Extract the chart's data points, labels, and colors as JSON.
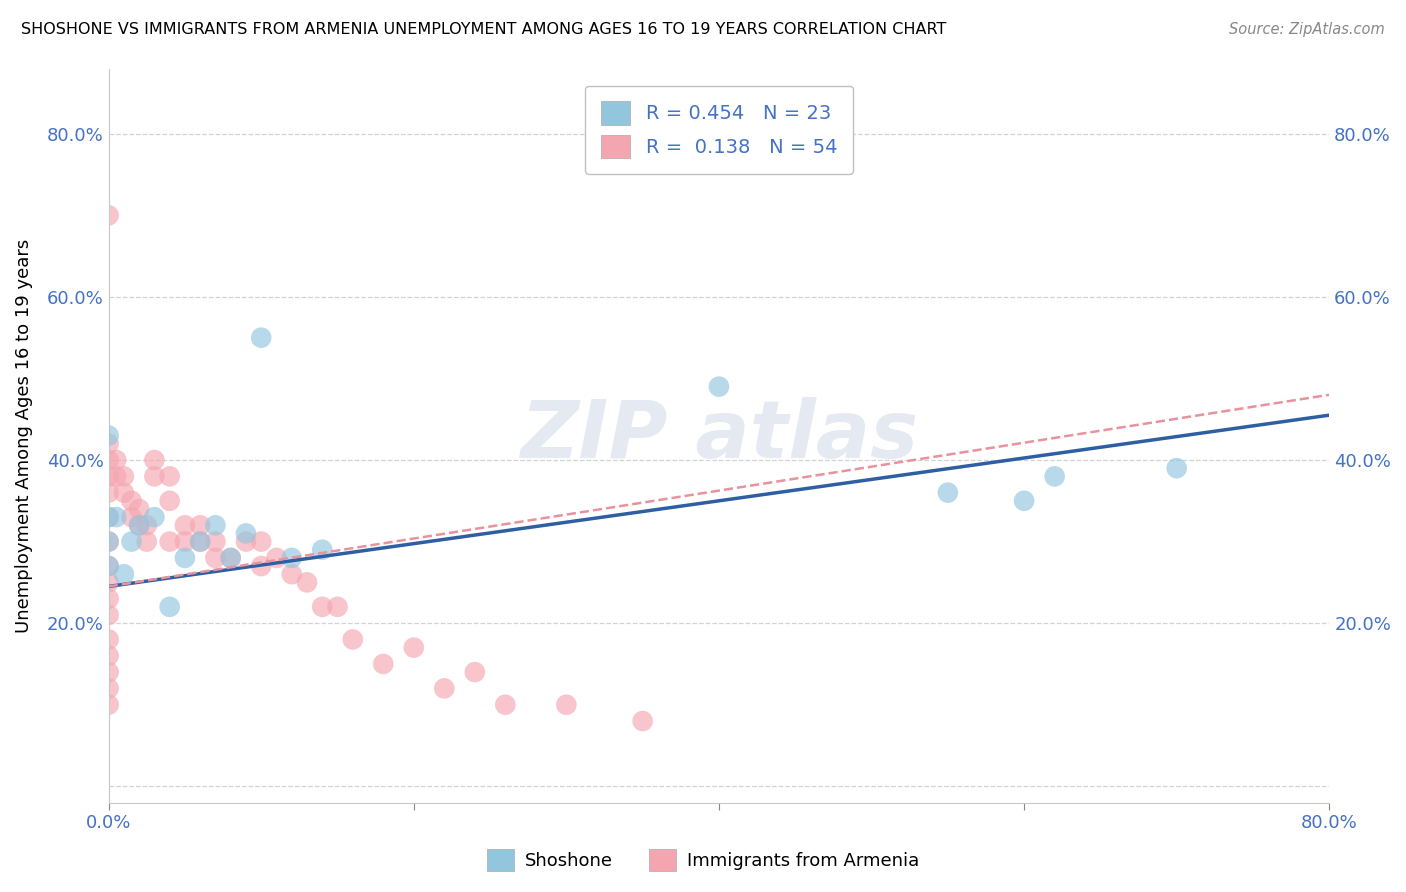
{
  "title": "SHOSHONE VS IMMIGRANTS FROM ARMENIA UNEMPLOYMENT AMONG AGES 16 TO 19 YEARS CORRELATION CHART",
  "source": "Source: ZipAtlas.com",
  "ylabel": "Unemployment Among Ages 16 to 19 years",
  "xlim": [
    0,
    0.8
  ],
  "ylim": [
    -0.02,
    0.88
  ],
  "yticks": [
    0.0,
    0.2,
    0.4,
    0.6,
    0.8
  ],
  "ytick_labels": [
    "",
    "20.0%",
    "40.0%",
    "60.0%",
    "80.0%"
  ],
  "shoshone_color": "#92C5DE",
  "armenia_color": "#F4A6B0",
  "shoshone_line_color": "#2E5FA3",
  "armenia_line_color": "#E8929E",
  "R_shoshone": 0.454,
  "N_shoshone": 23,
  "R_armenia": 0.138,
  "N_armenia": 54,
  "watermark": "ZIPatlas",
  "shoshone_x": [
    0.0,
    0.0,
    0.0,
    0.0,
    0.005,
    0.01,
    0.015,
    0.02,
    0.03,
    0.04,
    0.05,
    0.06,
    0.07,
    0.08,
    0.09,
    0.1,
    0.12,
    0.14,
    0.4,
    0.55,
    0.6,
    0.62,
    0.7
  ],
  "shoshone_y": [
    0.27,
    0.3,
    0.33,
    0.43,
    0.33,
    0.26,
    0.3,
    0.32,
    0.33,
    0.22,
    0.28,
    0.3,
    0.32,
    0.28,
    0.31,
    0.55,
    0.28,
    0.29,
    0.49,
    0.36,
    0.35,
    0.38,
    0.39
  ],
  "armenia_x": [
    0.0,
    0.0,
    0.0,
    0.0,
    0.0,
    0.0,
    0.0,
    0.0,
    0.0,
    0.0,
    0.0,
    0.0,
    0.0,
    0.0,
    0.0,
    0.0,
    0.005,
    0.005,
    0.01,
    0.01,
    0.015,
    0.015,
    0.02,
    0.02,
    0.025,
    0.025,
    0.03,
    0.03,
    0.04,
    0.04,
    0.04,
    0.05,
    0.05,
    0.06,
    0.06,
    0.07,
    0.07,
    0.08,
    0.09,
    0.1,
    0.1,
    0.11,
    0.12,
    0.13,
    0.14,
    0.15,
    0.16,
    0.18,
    0.2,
    0.22,
    0.24,
    0.26,
    0.3,
    0.35
  ],
  "armenia_y": [
    0.7,
    0.42,
    0.4,
    0.38,
    0.36,
    0.33,
    0.3,
    0.27,
    0.25,
    0.23,
    0.21,
    0.18,
    0.16,
    0.14,
    0.12,
    0.1,
    0.38,
    0.4,
    0.36,
    0.38,
    0.33,
    0.35,
    0.32,
    0.34,
    0.3,
    0.32,
    0.38,
    0.4,
    0.35,
    0.38,
    0.3,
    0.3,
    0.32,
    0.3,
    0.32,
    0.3,
    0.28,
    0.28,
    0.3,
    0.27,
    0.3,
    0.28,
    0.26,
    0.25,
    0.22,
    0.22,
    0.18,
    0.15,
    0.17,
    0.12,
    0.14,
    0.1,
    0.1,
    0.08
  ]
}
